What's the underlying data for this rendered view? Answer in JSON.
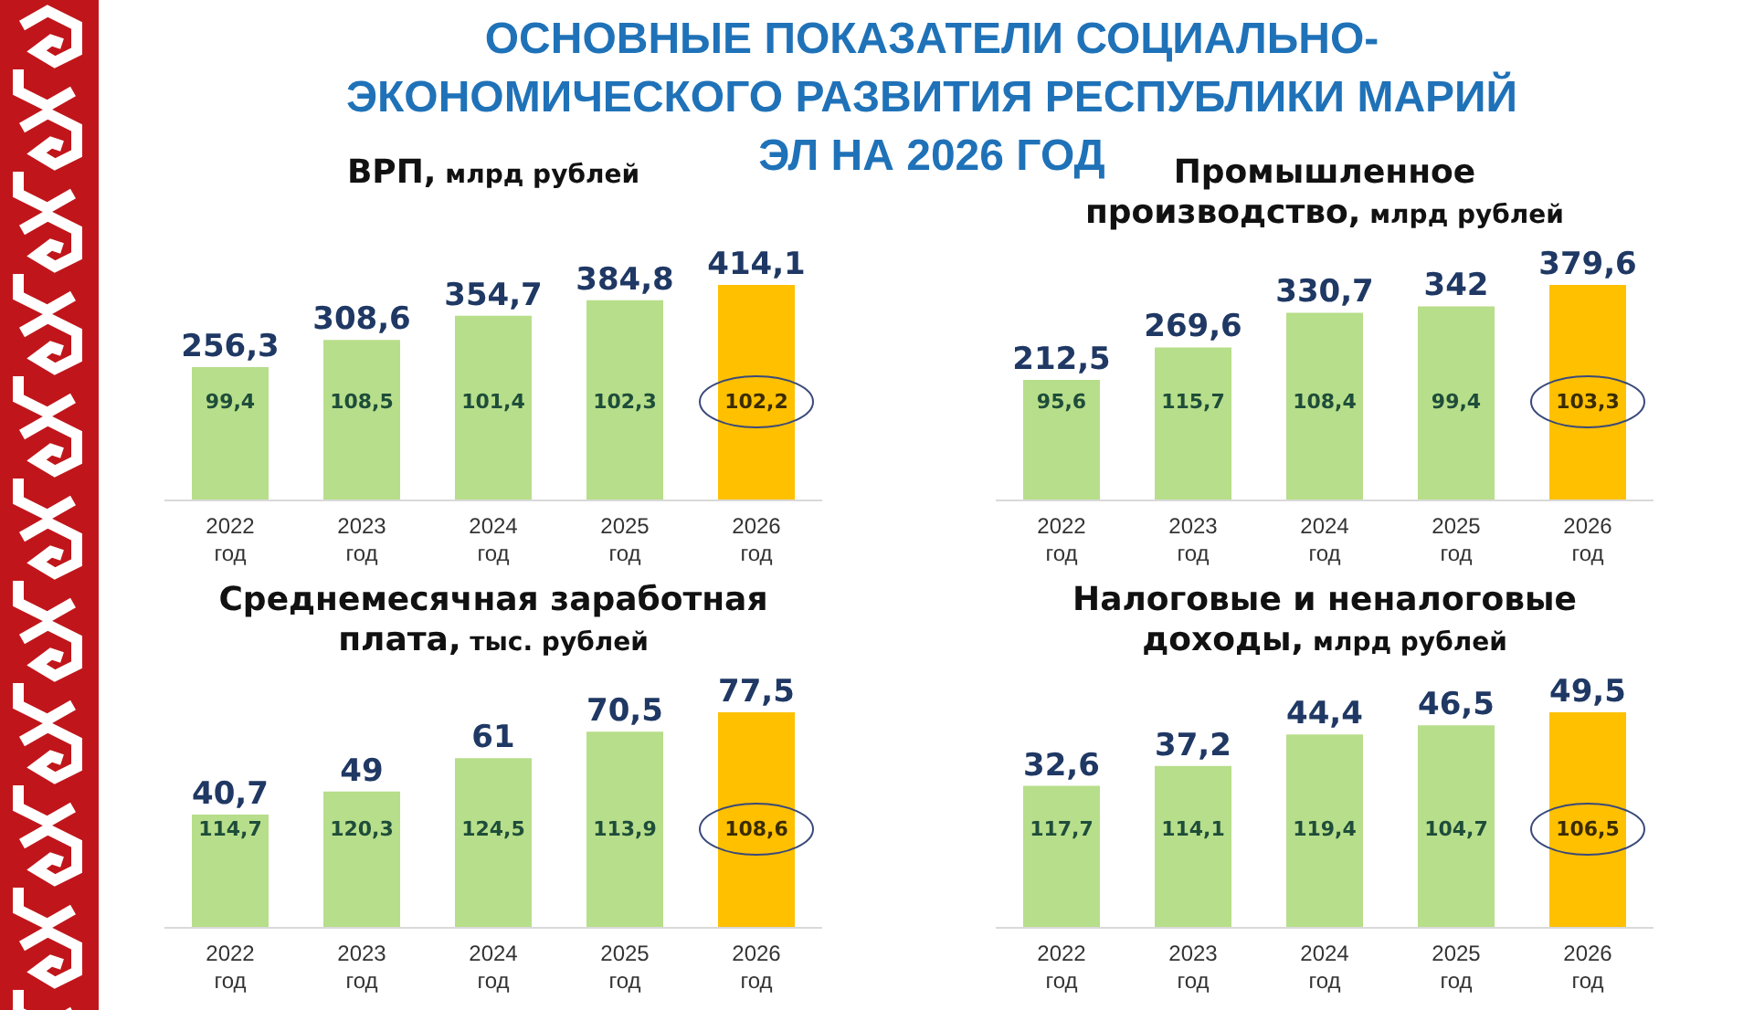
{
  "chart_data": [
    {
      "type": "other",
      "title": "ОСНОВНЫЕ ПОКАЗАТЕЛИ СОЦИАЛЬНО-ЭКОНОМИЧЕСКОГО РАЗВИТИЯ РЕСПУБЛИКИ МАРИЙ ЭЛ НА 2026 ГОД"
    },
    {
      "type": "bar",
      "title": "ВРП,",
      "subtitle": "млрд рублей",
      "categories": [
        "2022 год",
        "2023 год",
        "2024 год",
        "2025 год",
        "2026 год"
      ],
      "values": [
        256.3,
        308.6,
        354.7,
        384.8,
        414.1
      ],
      "value_labels": [
        "256,3",
        "308,6",
        "354,7",
        "384,8",
        "414,1"
      ],
      "colors": [
        "#b7de8a",
        "#b7de8a",
        "#b7de8a",
        "#b7de8a",
        "#ffc000"
      ],
      "annotations": [
        "99,4",
        "108,5",
        "101,4",
        "102,3",
        "102,2"
      ]
    },
    {
      "type": "bar",
      "title": "Промышленное производство,",
      "subtitle": "млрд рублей",
      "categories": [
        "2022 год",
        "2023 год",
        "2024 год",
        "2025 год",
        "2026 год"
      ],
      "values": [
        212.5,
        269.6,
        330.7,
        342,
        379.6
      ],
      "value_labels": [
        "212,5",
        "269,6",
        "330,7",
        "342",
        "379,6"
      ],
      "colors": [
        "#b7de8a",
        "#b7de8a",
        "#b7de8a",
        "#b7de8a",
        "#ffc000"
      ],
      "annotations": [
        "95,6",
        "115,7",
        "108,4",
        "99,4",
        "103,3"
      ]
    },
    {
      "type": "bar",
      "title": "Среднемесячная заработная плата,",
      "subtitle": "тыс. рублей",
      "categories": [
        "2022 год",
        "2023 год",
        "2024 год",
        "2025 год",
        "2026 год"
      ],
      "values": [
        40.7,
        49,
        61,
        70.5,
        77.5
      ],
      "value_labels": [
        "40,7",
        "49",
        "61",
        "70,5",
        "77,5"
      ],
      "colors": [
        "#b7de8a",
        "#b7de8a",
        "#b7de8a",
        "#b7de8a",
        "#ffc000"
      ],
      "annotations": [
        "114,7",
        "120,3",
        "124,5",
        "113,9",
        "108,6"
      ]
    },
    {
      "type": "bar",
      "title": "Налоговые и неналоговые доходы,",
      "subtitle": "млрд рублей",
      "categories": [
        "2022 год",
        "2023 год",
        "2024 год",
        "2025 год",
        "2026 год"
      ],
      "values": [
        32.6,
        37.2,
        44.4,
        46.5,
        49.5
      ],
      "value_labels": [
        "32,6",
        "37,2",
        "44,4",
        "46,5",
        "49,5"
      ],
      "colors": [
        "#b7de8a",
        "#b7de8a",
        "#b7de8a",
        "#b7de8a",
        "#ffc000"
      ],
      "annotations": [
        "117,7",
        "114,1",
        "119,4",
        "104,7",
        "106,5"
      ]
    }
  ]
}
